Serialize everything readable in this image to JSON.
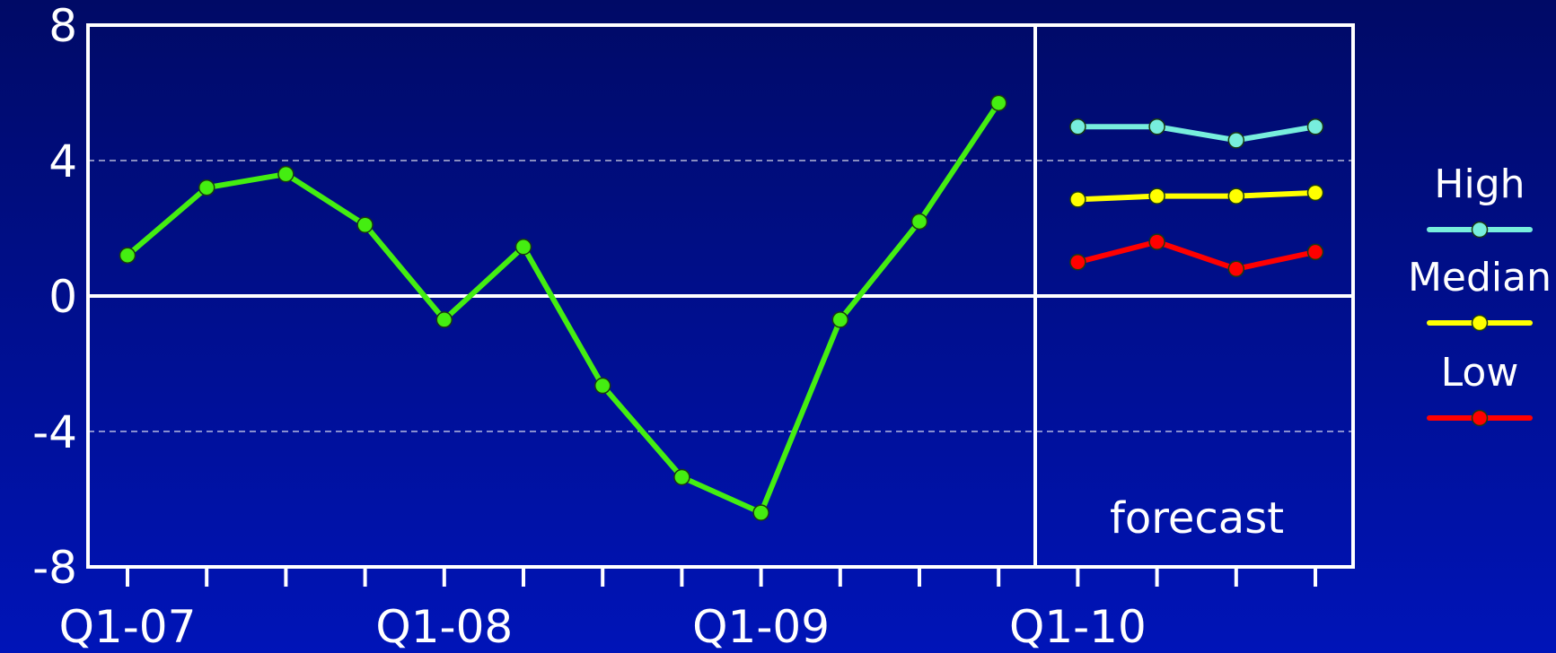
{
  "chart_data": {
    "type": "line",
    "ylim": [
      -8,
      8
    ],
    "y_ticks": [
      "8",
      "4",
      "0",
      "-4",
      "-8"
    ],
    "y_tick_values": [
      8,
      4,
      0,
      -4,
      -8
    ],
    "x_tick_labels": [
      "Q1-07",
      "Q1-08",
      "Q1-09",
      "Q1-10"
    ],
    "x_tick_label_indices": [
      0,
      4,
      8,
      12
    ],
    "num_periods": 16,
    "gridlines_dashed_at": [
      4,
      -4
    ],
    "forecast_start_index": 12,
    "forecast_label": "forecast",
    "actual": {
      "color": "#44ee11",
      "values": [
        1.2,
        3.2,
        3.6,
        2.1,
        -0.7,
        1.45,
        -2.65,
        -5.35,
        -6.4,
        -0.7,
        2.2,
        5.7
      ]
    },
    "series": [
      {
        "name": "High",
        "color": "#77eedd",
        "values": [
          5.0,
          5.0,
          4.6,
          5.0
        ]
      },
      {
        "name": "Median",
        "color": "#ffff00",
        "values": [
          2.85,
          2.95,
          2.95,
          3.05
        ]
      },
      {
        "name": "Low",
        "color": "#ff0000",
        "values": [
          1.0,
          1.6,
          0.8,
          1.3
        ]
      }
    ],
    "legend_position": "right"
  }
}
